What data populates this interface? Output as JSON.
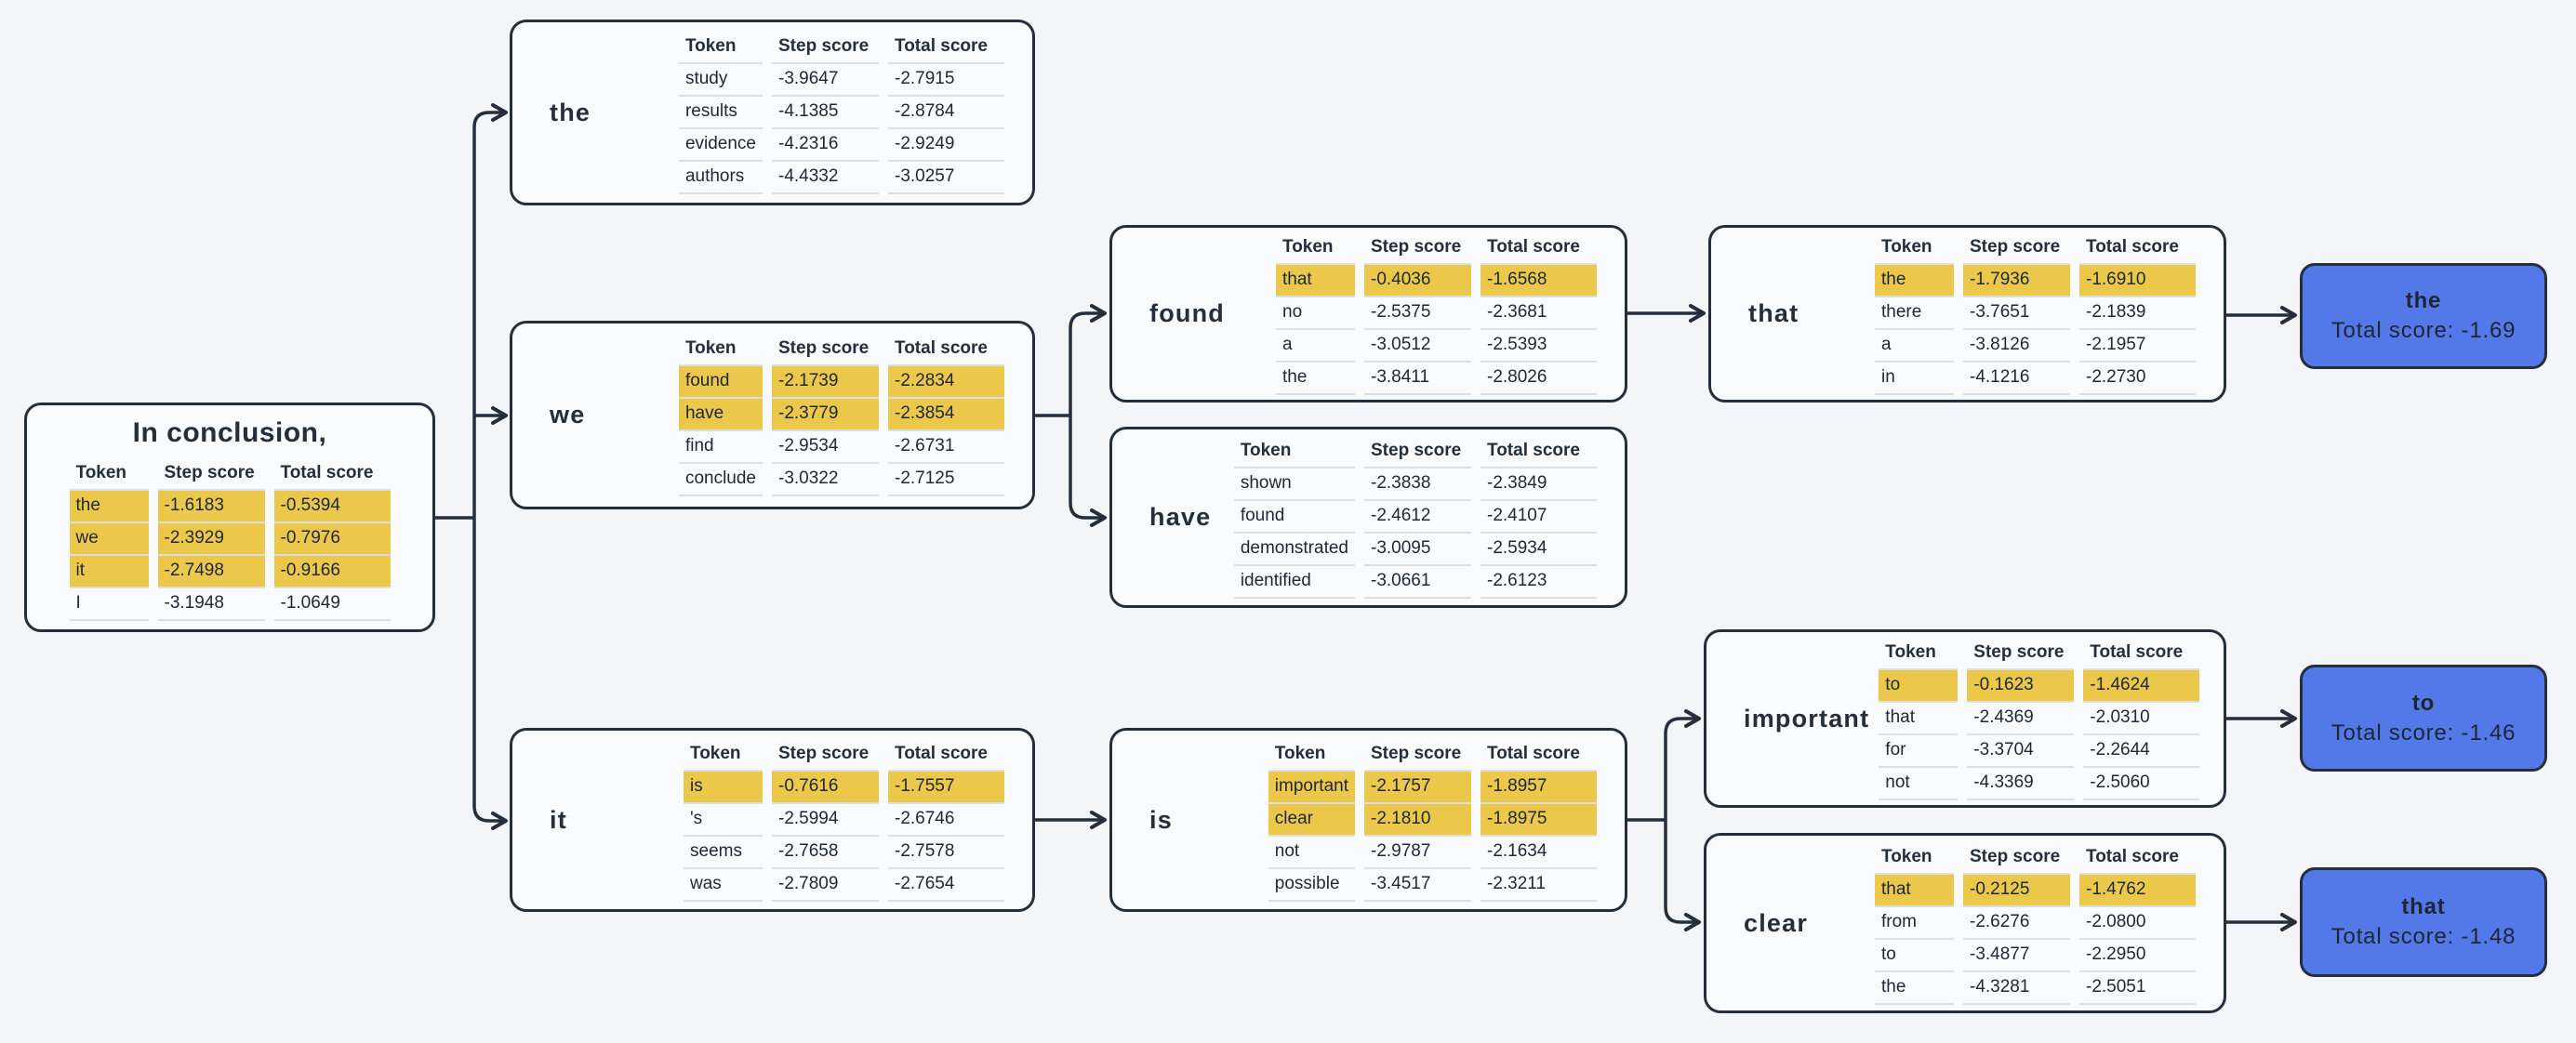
{
  "headers": {
    "token": "Token",
    "step": "Step score",
    "total": "Total score"
  },
  "root": {
    "title": "In conclusion,",
    "rows": [
      {
        "token": "the",
        "step": "-1.6183",
        "total": "-0.5394",
        "highlight": true
      },
      {
        "token": "we",
        "step": "-2.3929",
        "total": "-0.7976",
        "highlight": true
      },
      {
        "token": "it",
        "step": "-2.7498",
        "total": "-0.9166",
        "highlight": true
      },
      {
        "token": "I",
        "step": "-3.1948",
        "total": "-1.0649",
        "highlight": false
      }
    ]
  },
  "nodes": {
    "the": {
      "label": "the",
      "rows": [
        {
          "token": "study",
          "step": "-3.9647",
          "total": "-2.7915",
          "highlight": false
        },
        {
          "token": "results",
          "step": "-4.1385",
          "total": "-2.8784",
          "highlight": false
        },
        {
          "token": "evidence",
          "step": "-4.2316",
          "total": "-2.9249",
          "highlight": false
        },
        {
          "token": "authors",
          "step": "-4.4332",
          "total": "-3.0257",
          "highlight": false
        }
      ]
    },
    "we": {
      "label": "we",
      "rows": [
        {
          "token": "found",
          "step": "-2.1739",
          "total": "-2.2834",
          "highlight": true
        },
        {
          "token": "have",
          "step": "-2.3779",
          "total": "-2.3854",
          "highlight": true
        },
        {
          "token": "find",
          "step": "-2.9534",
          "total": "-2.6731",
          "highlight": false
        },
        {
          "token": "conclude",
          "step": "-3.0322",
          "total": "-2.7125",
          "highlight": false
        }
      ]
    },
    "it": {
      "label": "it",
      "rows": [
        {
          "token": "is",
          "step": "-0.7616",
          "total": "-1.7557",
          "highlight": true
        },
        {
          "token": "'s",
          "step": "-2.5994",
          "total": "-2.6746",
          "highlight": false
        },
        {
          "token": "seems",
          "step": "-2.7658",
          "total": "-2.7578",
          "highlight": false
        },
        {
          "token": "was",
          "step": "-2.7809",
          "total": "-2.7654",
          "highlight": false
        }
      ]
    },
    "found": {
      "label": "found",
      "rows": [
        {
          "token": "that",
          "step": "-0.4036",
          "total": "-1.6568",
          "highlight": true
        },
        {
          "token": "no",
          "step": "-2.5375",
          "total": "-2.3681",
          "highlight": false
        },
        {
          "token": "a",
          "step": "-3.0512",
          "total": "-2.5393",
          "highlight": false
        },
        {
          "token": "the",
          "step": "-3.8411",
          "total": "-2.8026",
          "highlight": false
        }
      ]
    },
    "have": {
      "label": "have",
      "rows": [
        {
          "token": "shown",
          "step": "-2.3838",
          "total": "-2.3849",
          "highlight": false
        },
        {
          "token": "found",
          "step": "-2.4612",
          "total": "-2.4107",
          "highlight": false
        },
        {
          "token": "demonstrated",
          "step": "-3.0095",
          "total": "-2.5934",
          "highlight": false
        },
        {
          "token": "identified",
          "step": "-3.0661",
          "total": "-2.6123",
          "highlight": false
        }
      ]
    },
    "that": {
      "label": "that",
      "rows": [
        {
          "token": "the",
          "step": "-1.7936",
          "total": "-1.6910",
          "highlight": true
        },
        {
          "token": "there",
          "step": "-3.7651",
          "total": "-2.1839",
          "highlight": false
        },
        {
          "token": "a",
          "step": "-3.8126",
          "total": "-2.1957",
          "highlight": false
        },
        {
          "token": "in",
          "step": "-4.1216",
          "total": "-2.2730",
          "highlight": false
        }
      ]
    },
    "is": {
      "label": "is",
      "rows": [
        {
          "token": "important",
          "step": "-2.1757",
          "total": "-1.8957",
          "highlight": true
        },
        {
          "token": "clear",
          "step": "-2.1810",
          "total": "-1.8975",
          "highlight": true
        },
        {
          "token": "not",
          "step": "-2.9787",
          "total": "-2.1634",
          "highlight": false
        },
        {
          "token": "possible",
          "step": "-3.4517",
          "total": "-2.3211",
          "highlight": false
        }
      ]
    },
    "important": {
      "label": "important",
      "rows": [
        {
          "token": "to",
          "step": "-0.1623",
          "total": "-1.4624",
          "highlight": true
        },
        {
          "token": "that",
          "step": "-2.4369",
          "total": "-2.0310",
          "highlight": false
        },
        {
          "token": "for",
          "step": "-3.3704",
          "total": "-2.2644",
          "highlight": false
        },
        {
          "token": "not",
          "step": "-4.3369",
          "total": "-2.5060",
          "highlight": false
        }
      ]
    },
    "clear": {
      "label": "clear",
      "rows": [
        {
          "token": "that",
          "step": "-0.2125",
          "total": "-1.4762",
          "highlight": true
        },
        {
          "token": "from",
          "step": "-2.6276",
          "total": "-2.0800",
          "highlight": false
        },
        {
          "token": "to",
          "step": "-3.4877",
          "total": "-2.2950",
          "highlight": false
        },
        {
          "token": "the",
          "step": "-4.3281",
          "total": "-2.5051",
          "highlight": false
        }
      ]
    }
  },
  "terminals": {
    "the": {
      "word": "the",
      "score": "Total score: -1.69"
    },
    "to": {
      "word": "to",
      "score": "Total score: -1.46"
    },
    "that": {
      "word": "that",
      "score": "Total score: -1.48"
    }
  },
  "colors": {
    "background": "#f4f5f8",
    "node_background": "#fafbfe",
    "border": "#252e3d",
    "highlight_yellow": "#ecc84a",
    "terminal_blue": "#5379e8",
    "row_separator": "#dcdfe4",
    "text": "#252e3d"
  }
}
